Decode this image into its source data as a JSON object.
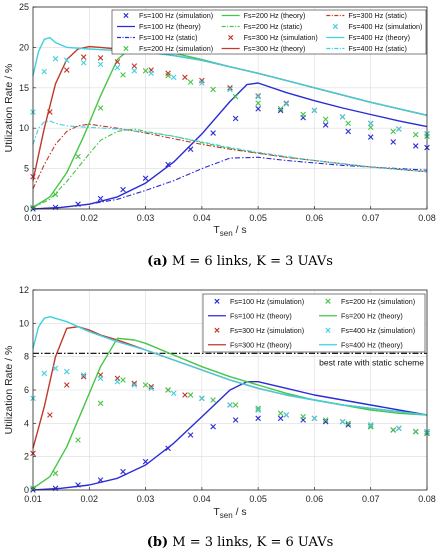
{
  "chart_data": [
    {
      "type": "line",
      "caption": "(a) M = 6 links, K = 3 UAVs",
      "caption_tag": "(a)",
      "caption_text": "M = 6 links, K = 3 UAVs",
      "xlabel": "T_sen / s",
      "ylabel": "Utilization Rate / %",
      "xlim": [
        0.01,
        0.08
      ],
      "ylim": [
        0,
        25
      ],
      "xticks": [
        "0.01",
        "0.02",
        "0.03",
        "0.04",
        "0.05",
        "0.06",
        "0.07",
        "0.08"
      ],
      "yticks": [
        "0",
        "5",
        "10",
        "15",
        "20",
        "25"
      ],
      "grid": true,
      "legend_position": "top-right",
      "legend_columns": 3,
      "series": [
        {
          "name": "Fs=100 Hz (simulation)",
          "color": "#2b2bd6",
          "style": "marker",
          "x": [
            0.01,
            0.014,
            0.018,
            0.022,
            0.026,
            0.03,
            0.034,
            0.038,
            0.042,
            0.046,
            0.05,
            0.054,
            0.058,
            0.062,
            0.066,
            0.07,
            0.074,
            0.078,
            0.08
          ],
          "y": [
            0.0,
            0.2,
            0.6,
            1.3,
            2.4,
            3.8,
            5.5,
            7.4,
            9.4,
            11.2,
            12.4,
            12.2,
            11.3,
            10.4,
            9.6,
            8.9,
            8.3,
            7.8,
            7.6
          ]
        },
        {
          "name": "Fs=100 Hz (theory)",
          "color": "#2b2bd6",
          "style": "solid",
          "x": [
            0.01,
            0.015,
            0.02,
            0.025,
            0.03,
            0.035,
            0.04,
            0.045,
            0.048,
            0.05,
            0.055,
            0.06,
            0.065,
            0.07,
            0.075,
            0.08
          ],
          "y": [
            0.0,
            0.2,
            0.6,
            1.5,
            3.2,
            5.8,
            9.3,
            13.3,
            15.4,
            15.6,
            14.4,
            13.4,
            12.5,
            11.7,
            10.9,
            10.2
          ]
        },
        {
          "name": "Fs=100 Hz (static)",
          "color": "#2b2bd6",
          "style": "dashdot",
          "x": [
            0.01,
            0.015,
            0.02,
            0.025,
            0.03,
            0.035,
            0.04,
            0.045,
            0.05,
            0.055,
            0.06,
            0.065,
            0.07,
            0.075,
            0.08
          ],
          "y": [
            0.0,
            0.2,
            0.6,
            1.2,
            2.3,
            3.5,
            5.0,
            6.3,
            6.4,
            6.0,
            5.7,
            5.4,
            5.2,
            5.0,
            4.8
          ]
        },
        {
          "name": "Fs=200 Hz (simulation)",
          "color": "#46c546",
          "style": "marker",
          "x": [
            0.01,
            0.014,
            0.018,
            0.022,
            0.026,
            0.03,
            0.034,
            0.038,
            0.042,
            0.046,
            0.05,
            0.054,
            0.058,
            0.062,
            0.066,
            0.07,
            0.074,
            0.078,
            0.08
          ],
          "y": [
            0.2,
            1.8,
            6.5,
            12.5,
            16.6,
            17.1,
            16.5,
            15.7,
            14.8,
            13.9,
            13.1,
            12.4,
            11.7,
            11.1,
            10.6,
            10.1,
            9.6,
            9.2,
            9.0
          ]
        },
        {
          "name": "Fs=200 Hz (theory)",
          "color": "#46c546",
          "style": "solid",
          "x": [
            0.01,
            0.013,
            0.016,
            0.019,
            0.022,
            0.025,
            0.028,
            0.03,
            0.035,
            0.04,
            0.045,
            0.05,
            0.055,
            0.06,
            0.065,
            0.07,
            0.075,
            0.08
          ],
          "y": [
            0.2,
            1.5,
            4.5,
            9.0,
            14.0,
            18.5,
            20.3,
            20.1,
            19.3,
            18.5,
            17.6,
            16.8,
            15.9,
            15.0,
            14.1,
            13.2,
            12.4,
            11.6
          ]
        },
        {
          "name": "Fs=200 Hz (static)",
          "color": "#46c546",
          "style": "dashdot",
          "x": [
            0.01,
            0.013,
            0.016,
            0.019,
            0.022,
            0.025,
            0.028,
            0.03,
            0.035,
            0.04,
            0.045,
            0.05,
            0.055,
            0.06,
            0.065,
            0.07,
            0.075,
            0.08
          ],
          "y": [
            0.2,
            1.2,
            3.4,
            6.0,
            8.5,
            9.6,
            9.9,
            9.6,
            9.0,
            8.2,
            7.5,
            6.9,
            6.4,
            6.0,
            5.6,
            5.2,
            4.9,
            4.6
          ]
        },
        {
          "name": "Fs=300 Hz (simulation)",
          "color": "#c0392b",
          "style": "marker",
          "x": [
            0.01,
            0.013,
            0.016,
            0.019,
            0.022,
            0.025,
            0.028,
            0.031,
            0.034,
            0.037,
            0.04,
            0.045,
            0.05,
            0.055,
            0.06,
            0.065,
            0.07,
            0.075,
            0.08
          ],
          "y": [
            4.0,
            12.0,
            17.2,
            18.8,
            18.7,
            18.2,
            17.7,
            17.2,
            16.8,
            16.3,
            15.9,
            15.0,
            14.0,
            13.1,
            12.2,
            11.4,
            10.6,
            9.9,
            9.3
          ]
        },
        {
          "name": "Fs=300 Hz (theory)",
          "color": "#c0392b",
          "style": "solid",
          "x": [
            0.01,
            0.012,
            0.014,
            0.016,
            0.018,
            0.02,
            0.022,
            0.025,
            0.03,
            0.035,
            0.04,
            0.045,
            0.05,
            0.055,
            0.06,
            0.065,
            0.07,
            0.075,
            0.08
          ],
          "y": [
            3.5,
            10.0,
            15.5,
            18.5,
            19.8,
            20.1,
            20.0,
            19.8,
            19.5,
            19.0,
            18.4,
            17.6,
            16.8,
            15.9,
            15.0,
            14.1,
            13.2,
            12.4,
            11.6
          ]
        },
        {
          "name": "Fs=300 Hz (static)",
          "color": "#c0392b",
          "style": "dashdot",
          "x": [
            0.01,
            0.012,
            0.014,
            0.016,
            0.018,
            0.02,
            0.022,
            0.025,
            0.03,
            0.035,
            0.04,
            0.045,
            0.05,
            0.055,
            0.06,
            0.065,
            0.07,
            0.075,
            0.08
          ],
          "y": [
            2.5,
            5.5,
            8.0,
            9.6,
            10.3,
            10.5,
            10.3,
            10.0,
            9.4,
            8.7,
            8.0,
            7.4,
            6.9,
            6.4,
            6.0,
            5.6,
            5.2,
            4.9,
            4.6
          ]
        },
        {
          "name": "Fs=400 Hz (simulation)",
          "color": "#3fd0e0",
          "style": "marker",
          "x": [
            0.01,
            0.012,
            0.014,
            0.016,
            0.019,
            0.022,
            0.025,
            0.028,
            0.031,
            0.035,
            0.04,
            0.045,
            0.05,
            0.055,
            0.06,
            0.065,
            0.07,
            0.075,
            0.08
          ],
          "y": [
            12.0,
            17.0,
            18.6,
            18.4,
            18.1,
            17.9,
            17.5,
            17.1,
            16.8,
            16.3,
            15.6,
            14.8,
            13.9,
            13.0,
            12.2,
            11.4,
            10.6,
            9.9,
            9.3
          ]
        },
        {
          "name": "Fs=400 Hz (theory)",
          "color": "#3fd0e0",
          "style": "solid",
          "x": [
            0.01,
            0.011,
            0.012,
            0.013,
            0.014,
            0.016,
            0.018,
            0.02,
            0.025,
            0.03,
            0.035,
            0.04,
            0.045,
            0.05,
            0.055,
            0.06,
            0.065,
            0.07,
            0.075,
            0.08
          ],
          "y": [
            16.5,
            19.5,
            21.0,
            21.2,
            20.6,
            20.0,
            19.9,
            19.8,
            19.6,
            19.4,
            19.0,
            18.4,
            17.6,
            16.8,
            15.9,
            15.0,
            14.1,
            13.2,
            12.4,
            11.6
          ]
        },
        {
          "name": "Fs=400 Hz (static)",
          "color": "#3fd0e0",
          "style": "dashdot",
          "x": [
            0.01,
            0.011,
            0.012,
            0.013,
            0.014,
            0.016,
            0.018,
            0.02,
            0.025,
            0.03,
            0.035,
            0.04,
            0.045,
            0.05,
            0.055,
            0.06,
            0.065,
            0.07,
            0.075,
            0.08
          ],
          "y": [
            8.0,
            10.0,
            10.8,
            10.9,
            10.6,
            10.3,
            10.2,
            10.1,
            9.9,
            9.5,
            9.0,
            8.3,
            7.6,
            7.0,
            6.5,
            6.0,
            5.6,
            5.2,
            4.9,
            4.6
          ]
        }
      ]
    },
    {
      "type": "line",
      "caption": "(b) M = 3 links, K = 6 UAVs",
      "caption_tag": "(b)",
      "caption_text": "M = 3 links, K = 6 UAVs",
      "xlabel": "T_sen / s",
      "ylabel": "Utilization Rate / %",
      "xlim": [
        0.01,
        0.08
      ],
      "ylim": [
        0,
        12
      ],
      "xticks": [
        "0.01",
        "0.02",
        "0.03",
        "0.04",
        "0.05",
        "0.06",
        "0.07",
        "0.08"
      ],
      "yticks": [
        "0",
        "2",
        "4",
        "6",
        "8",
        "10",
        "12"
      ],
      "grid": true,
      "legend_position": "top-right",
      "legend_columns": 2,
      "annotation": "best rate with static scheme",
      "static_best": {
        "value": 8.2,
        "color": "#000000",
        "style": "dashdot"
      },
      "series": [
        {
          "name": "Fs=100 Hz (simulation)",
          "color": "#2b2bd6",
          "style": "marker",
          "x": [
            0.01,
            0.014,
            0.018,
            0.022,
            0.026,
            0.03,
            0.034,
            0.038,
            0.042,
            0.046,
            0.05,
            0.054,
            0.058,
            0.062,
            0.066,
            0.07,
            0.074,
            0.078,
            0.08
          ],
          "y": [
            0.0,
            0.1,
            0.3,
            0.6,
            1.1,
            1.7,
            2.5,
            3.3,
            3.8,
            4.2,
            4.3,
            4.3,
            4.2,
            4.1,
            3.9,
            3.8,
            3.6,
            3.5,
            3.4
          ]
        },
        {
          "name": "Fs=100 Hz (theory)",
          "color": "#2b2bd6",
          "style": "solid",
          "x": [
            0.01,
            0.015,
            0.02,
            0.025,
            0.03,
            0.035,
            0.04,
            0.045,
            0.048,
            0.05,
            0.055,
            0.06,
            0.065,
            0.07,
            0.075,
            0.08
          ],
          "y": [
            0.0,
            0.1,
            0.3,
            0.7,
            1.5,
            2.8,
            4.4,
            6.0,
            6.5,
            6.5,
            6.1,
            5.7,
            5.4,
            5.1,
            4.8,
            4.5
          ]
        },
        {
          "name": "Fs=300 Hz (simulation)",
          "color": "#c0392b",
          "style": "marker",
          "x": [
            0.01,
            0.013,
            0.016,
            0.019,
            0.022,
            0.025,
            0.028,
            0.031,
            0.034,
            0.037,
            0.04,
            0.045,
            0.05,
            0.055,
            0.06,
            0.065,
            0.07,
            0.075,
            0.08
          ],
          "y": [
            2.2,
            4.5,
            6.3,
            6.8,
            6.9,
            6.7,
            6.4,
            6.2,
            6.0,
            5.7,
            5.5,
            5.1,
            4.8,
            4.5,
            4.3,
            4.1,
            3.9,
            3.7,
            3.5
          ]
        },
        {
          "name": "Fs=300 Hz (theory)",
          "color": "#c0392b",
          "style": "solid",
          "x": [
            0.01,
            0.012,
            0.014,
            0.016,
            0.018,
            0.02,
            0.022,
            0.025,
            0.03,
            0.035,
            0.04,
            0.045,
            0.05,
            0.055,
            0.06,
            0.065,
            0.07,
            0.075,
            0.08
          ],
          "y": [
            2.5,
            5.0,
            8.0,
            9.7,
            9.8,
            9.6,
            9.3,
            9.0,
            8.4,
            7.8,
            7.2,
            6.6,
            6.1,
            5.7,
            5.4,
            5.1,
            4.9,
            4.7,
            4.5
          ]
        },
        {
          "name": "Fs=200 Hz (simulation)",
          "color": "#46c546",
          "style": "marker",
          "x": [
            0.01,
            0.014,
            0.018,
            0.022,
            0.026,
            0.03,
            0.034,
            0.038,
            0.042,
            0.046,
            0.05,
            0.054,
            0.058,
            0.062,
            0.066,
            0.07,
            0.074,
            0.078,
            0.08
          ],
          "y": [
            0.1,
            1.0,
            3.0,
            5.2,
            6.6,
            6.3,
            6.0,
            5.7,
            5.4,
            5.1,
            4.9,
            4.6,
            4.4,
            4.2,
            4.0,
            3.8,
            3.6,
            3.5,
            3.4
          ]
        },
        {
          "name": "Fs=200 Hz (theory)",
          "color": "#46c546",
          "style": "solid",
          "x": [
            0.01,
            0.013,
            0.016,
            0.019,
            0.022,
            0.025,
            0.028,
            0.03,
            0.035,
            0.04,
            0.045,
            0.05,
            0.055,
            0.06,
            0.065,
            0.07,
            0.075,
            0.08
          ],
          "y": [
            0.1,
            0.8,
            2.6,
            5.0,
            7.4,
            9.1,
            9.0,
            8.8,
            8.1,
            7.4,
            6.8,
            6.3,
            5.8,
            5.4,
            5.1,
            4.8,
            4.6,
            4.5
          ]
        },
        {
          "name": "Fs=400 Hz (simulation)",
          "color": "#3fd0e0",
          "style": "marker",
          "x": [
            0.01,
            0.012,
            0.014,
            0.016,
            0.019,
            0.022,
            0.025,
            0.028,
            0.031,
            0.035,
            0.04,
            0.045,
            0.05,
            0.055,
            0.06,
            0.065,
            0.07,
            0.075,
            0.08
          ],
          "y": [
            5.5,
            7.0,
            7.3,
            7.1,
            6.9,
            6.7,
            6.5,
            6.3,
            6.1,
            5.8,
            5.5,
            5.1,
            4.8,
            4.5,
            4.3,
            4.1,
            3.9,
            3.7,
            3.5
          ]
        },
        {
          "name": "Fs=400 Hz (theory)",
          "color": "#3fd0e0",
          "style": "solid",
          "x": [
            0.01,
            0.011,
            0.012,
            0.013,
            0.014,
            0.016,
            0.018,
            0.02,
            0.025,
            0.03,
            0.035,
            0.04,
            0.045,
            0.05,
            0.055,
            0.06,
            0.065,
            0.07,
            0.075,
            0.08
          ],
          "y": [
            8.5,
            9.8,
            10.3,
            10.4,
            10.3,
            10.1,
            9.8,
            9.5,
            8.9,
            8.4,
            7.8,
            7.2,
            6.6,
            6.1,
            5.7,
            5.4,
            5.1,
            4.9,
            4.7,
            4.5
          ]
        }
      ]
    }
  ]
}
